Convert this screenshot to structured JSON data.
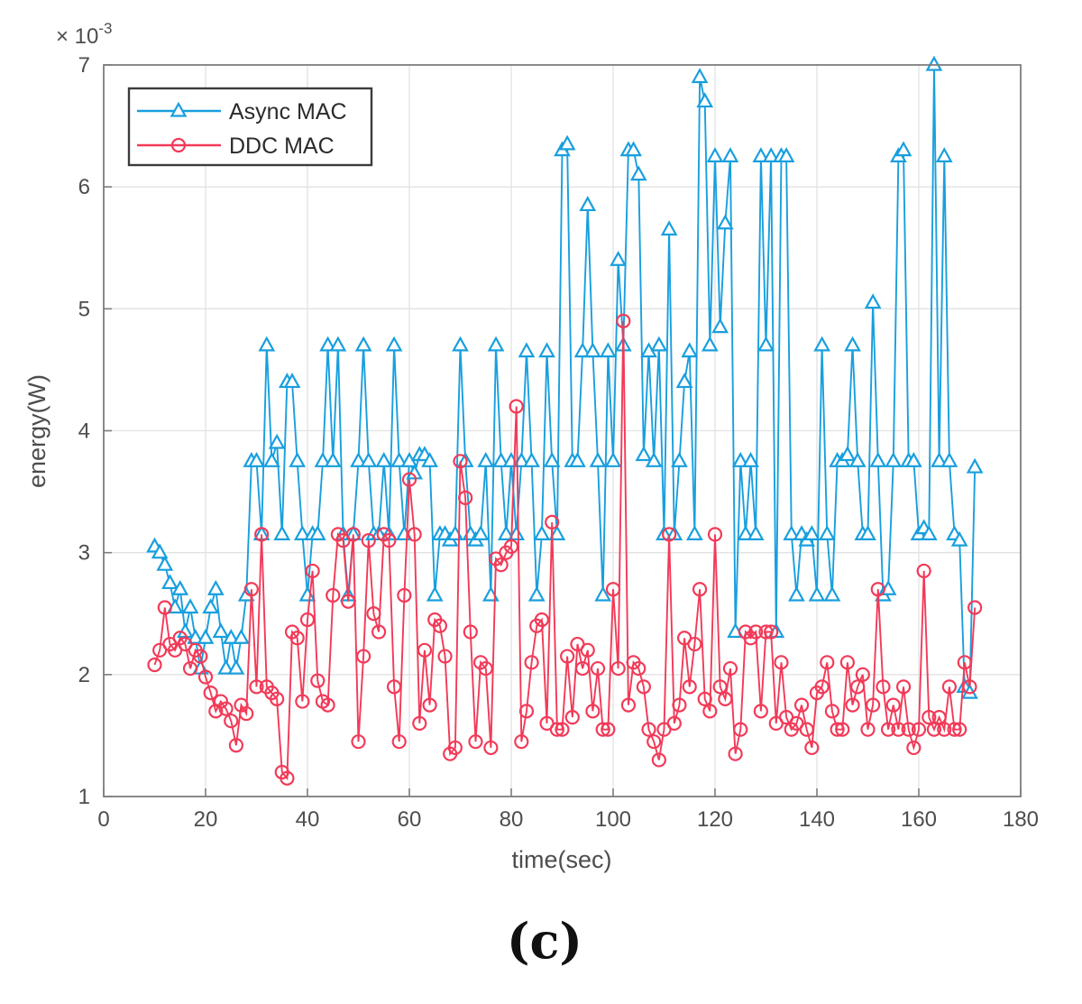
{
  "figure": {
    "offset_base": "× 10",
    "offset_exp": "-3",
    "caption": "(c)"
  },
  "legend": {
    "position": "top-left",
    "entries": [
      {
        "label": "Async MAC",
        "marker": "triangle"
      },
      {
        "label": "DDC MAC",
        "marker": "circle"
      }
    ]
  },
  "colors": {
    "async_mac": "#189fde",
    "ddc_mac": "#f23a58",
    "grid": "#e2e2e2",
    "axis": "#7d7d7d",
    "tick_text": "#4d4d4d",
    "legend_border": "#3c3c3c",
    "caption_text": "#111111"
  },
  "chart_data": {
    "type": "line",
    "title": "",
    "xlabel": "time(sec)",
    "ylabel": "energy(W)",
    "y_unit_multiplier": "1e-3",
    "xlim": [
      0,
      180
    ],
    "ylim": [
      1,
      7
    ],
    "xticks": [
      0,
      20,
      40,
      60,
      80,
      100,
      120,
      140,
      160,
      180
    ],
    "yticks": [
      1,
      2,
      3,
      4,
      5,
      6,
      7
    ],
    "grid": true,
    "legend_position": "top-left",
    "x_start": 10,
    "x_step": 1,
    "series": [
      {
        "name": "Async MAC",
        "marker": "triangle",
        "values": [
          3.05,
          3.0,
          2.9,
          2.75,
          2.55,
          2.7,
          2.35,
          2.55,
          2.3,
          2.05,
          2.3,
          2.55,
          2.7,
          2.35,
          2.05,
          2.3,
          2.05,
          2.3,
          2.65,
          3.75,
          3.75,
          3.15,
          4.7,
          3.75,
          3.9,
          3.15,
          4.4,
          4.4,
          3.75,
          3.15,
          2.65,
          3.15,
          3.15,
          3.75,
          4.7,
          3.75,
          4.7,
          3.15,
          2.65,
          3.15,
          3.75,
          4.7,
          3.75,
          3.15,
          3.15,
          3.75,
          3.15,
          4.7,
          3.75,
          3.15,
          3.75,
          3.65,
          3.8,
          3.8,
          3.75,
          2.65,
          3.15,
          3.15,
          3.1,
          3.15,
          4.7,
          3.75,
          3.15,
          3.1,
          3.15,
          3.75,
          2.65,
          4.7,
          3.75,
          3.15,
          3.75,
          3.15,
          3.75,
          4.65,
          3.75,
          2.65,
          3.15,
          4.65,
          3.75,
          3.15,
          6.3,
          6.35,
          3.75,
          3.75,
          4.65,
          5.85,
          4.65,
          3.75,
          2.65,
          4.65,
          3.75,
          5.4,
          4.7,
          6.3,
          6.3,
          6.1,
          3.8,
          4.65,
          3.75,
          4.7,
          3.15,
          5.65,
          3.15,
          3.75,
          4.4,
          4.65,
          3.15,
          6.9,
          6.7,
          4.7,
          6.25,
          4.85,
          5.7,
          6.25,
          2.35,
          3.75,
          3.15,
          3.75,
          3.15,
          6.25,
          4.7,
          6.25,
          2.35,
          6.25,
          6.25,
          3.15,
          2.65,
          3.15,
          3.1,
          3.15,
          2.65,
          4.7,
          3.15,
          2.65,
          3.75,
          3.75,
          3.8,
          4.7,
          3.75,
          3.15,
          3.15,
          5.05,
          3.75,
          2.65,
          2.7,
          3.75,
          6.25,
          6.3,
          3.75,
          3.75,
          3.15,
          3.2,
          3.15,
          7.0,
          3.75,
          6.25,
          3.75,
          3.15,
          3.1,
          1.9,
          1.85,
          3.7
        ]
      },
      {
        "name": "DDC MAC",
        "marker": "circle",
        "values": [
          2.08,
          2.2,
          2.55,
          2.25,
          2.2,
          2.3,
          2.25,
          2.05,
          2.2,
          2.15,
          1.98,
          1.85,
          1.7,
          1.78,
          1.72,
          1.62,
          1.42,
          1.75,
          1.68,
          2.7,
          1.9,
          3.15,
          1.9,
          1.85,
          1.8,
          1.2,
          1.15,
          2.35,
          2.3,
          1.78,
          2.45,
          2.85,
          1.95,
          1.78,
          1.75,
          2.65,
          3.15,
          3.1,
          2.6,
          3.15,
          1.45,
          2.15,
          3.1,
          2.5,
          2.35,
          3.15,
          3.1,
          1.9,
          1.45,
          2.65,
          3.6,
          3.15,
          1.6,
          2.2,
          1.75,
          2.45,
          2.4,
          2.15,
          1.35,
          1.4,
          3.75,
          3.45,
          2.35,
          1.45,
          2.1,
          2.05,
          1.4,
          2.95,
          2.9,
          3.0,
          3.05,
          4.2,
          1.45,
          1.7,
          2.1,
          2.4,
          2.45,
          1.6,
          3.25,
          1.55,
          1.55,
          2.15,
          1.65,
          2.25,
          2.05,
          2.2,
          1.7,
          2.05,
          1.55,
          1.55,
          2.7,
          2.05,
          4.9,
          1.75,
          2.1,
          2.05,
          1.9,
          1.55,
          1.45,
          1.3,
          1.55,
          3.15,
          1.6,
          1.75,
          2.3,
          1.9,
          2.25,
          2.7,
          1.8,
          1.7,
          3.15,
          1.9,
          1.8,
          2.05,
          1.35,
          1.55,
          2.35,
          2.3,
          2.35,
          1.7,
          2.35,
          2.35,
          1.6,
          2.1,
          1.65,
          1.55,
          1.6,
          1.75,
          1.55,
          1.4,
          1.85,
          1.9,
          2.1,
          1.7,
          1.55,
          1.55,
          2.1,
          1.75,
          1.9,
          2.0,
          1.55,
          1.75,
          2.7,
          1.9,
          1.55,
          1.75,
          1.55,
          1.9,
          1.55,
          1.4,
          1.55,
          2.85,
          1.65,
          1.55,
          1.65,
          1.55,
          1.9,
          1.55,
          1.55,
          2.1,
          1.9,
          2.55
        ]
      }
    ]
  }
}
